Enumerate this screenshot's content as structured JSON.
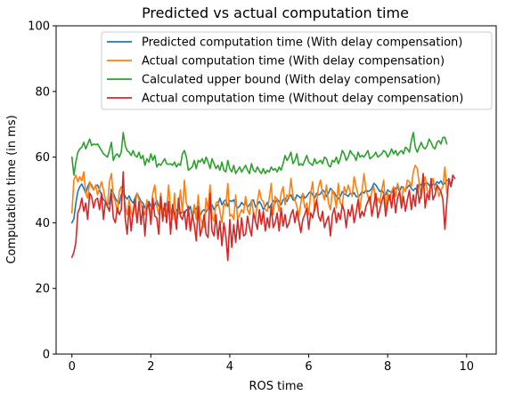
{
  "chart_data": {
    "type": "line",
    "title": "Predicted vs actual computation time",
    "xlabel": "ROS time",
    "ylabel": "Computation time (in ms)",
    "xlim": [
      -0.4,
      10.75
    ],
    "ylim": [
      0,
      100
    ],
    "x_ticks": [
      0,
      2,
      4,
      6,
      8,
      10
    ],
    "y_ticks": [
      0,
      20,
      40,
      60,
      80,
      100
    ],
    "x_tick_labels": [
      "0",
      "2",
      "4",
      "6",
      "8",
      "10"
    ],
    "y_tick_labels": [
      "0",
      "20",
      "40",
      "60",
      "80",
      "100"
    ],
    "grid": false,
    "legend_position": "top-right",
    "x_start": 0,
    "x_step": 0.05,
    "series": [
      {
        "name": "Predicted computation time (With delay compensation)",
        "color": "#1f77b4",
        "values": [
          40.0,
          41.2,
          46.0,
          49.5,
          51.0,
          51.8,
          50.5,
          49.0,
          51.0,
          52.3,
          51.5,
          50.0,
          51.2,
          51.5,
          50.0,
          48.5,
          47.0,
          46.5,
          45.5,
          46.0,
          50.2,
          49.0,
          47.5,
          46.5,
          45.8,
          48.5,
          49.5,
          48.0,
          47.2,
          48.2,
          46.8,
          46.0,
          47.5,
          49.0,
          47.8,
          46.5,
          46.0,
          44.5,
          45.8,
          46.5,
          45.0,
          44.2,
          45.5,
          46.8,
          45.0,
          46.2,
          44.0,
          44.5,
          46.0,
          43.5,
          43.0,
          44.5,
          42.5,
          44.0,
          43.0,
          42.8,
          43.5,
          42.5,
          44.0,
          43.8,
          45.0,
          42.0,
          43.5,
          44.5,
          43.0,
          42.2,
          43.5,
          44.0,
          43.2,
          44.5,
          44.0,
          45.5,
          44.0,
          45.0,
          45.5,
          47.5,
          45.5,
          46.5,
          47.0,
          45.0,
          46.8,
          46.5,
          47.0,
          45.2,
          44.5,
          45.0,
          46.2,
          45.5,
          46.0,
          44.8,
          45.5,
          46.5,
          47.0,
          44.8,
          45.5,
          46.5,
          45.5,
          44.0,
          45.0,
          46.2,
          44.5,
          45.5,
          46.8,
          46.0,
          47.2,
          46.5,
          45.5,
          47.0,
          47.5,
          46.5,
          47.8,
          48.5,
          47.0,
          46.8,
          48.5,
          48.0,
          47.5,
          48.8,
          47.5,
          48.0,
          49.0,
          49.5,
          48.5,
          47.5,
          49.0,
          48.5,
          48.8,
          50.0,
          49.5,
          48.0,
          49.0,
          50.5,
          49.8,
          49.2,
          48.0,
          47.2,
          48.0,
          49.5,
          48.8,
          48.5,
          48.0,
          49.0,
          48.5,
          49.2,
          48.0,
          47.8,
          48.5,
          49.5,
          49.0,
          50.0,
          49.5,
          49.8,
          50.5,
          52.0,
          51.5,
          50.5,
          49.5,
          50.0,
          49.0,
          48.5,
          50.0,
          49.5,
          49.2,
          50.0,
          50.5,
          51.0,
          49.5,
          51.0,
          50.5,
          50.0,
          50.8,
          51.5,
          50.5,
          49.8,
          50.5,
          50.0,
          52.0,
          51.5,
          50.8,
          52.0,
          52.2,
          51.5,
          51.0,
          51.8,
          51.5,
          52.5,
          52.0,
          52.8,
          51.5,
          52.0,
          53.0,
          53.0,
          51.0,
          53.2
        ]
      },
      {
        "name": "Actual computation time (With delay compensation)",
        "color": "#ff7f0e",
        "values": [
          43.0,
          53.0,
          54.5,
          52.5,
          54.0,
          52.8,
          55.5,
          49.0,
          47.5,
          52.5,
          51.0,
          50.0,
          51.5,
          48.5,
          50.5,
          52.5,
          50.0,
          47.0,
          45.0,
          52.5,
          55.0,
          48.0,
          46.5,
          43.0,
          49.5,
          51.0,
          49.5,
          45.0,
          42.5,
          47.0,
          43.0,
          42.0,
          45.5,
          49.0,
          47.0,
          46.0,
          43.5,
          42.5,
          47.0,
          44.0,
          43.0,
          49.0,
          51.5,
          45.0,
          42.5,
          49.0,
          43.0,
          42.0,
          43.5,
          51.5,
          43.5,
          41.0,
          49.0,
          40.0,
          44.0,
          50.0,
          43.0,
          53.0,
          46.0,
          44.0,
          38.0,
          42.0,
          45.5,
          41.0,
          48.5,
          41.5,
          40.0,
          38.5,
          47.5,
          44.0,
          51.5,
          42.0,
          40.5,
          46.0,
          46.5,
          43.5,
          40.0,
          46.0,
          45.0,
          52.0,
          42.0,
          42.5,
          41.0,
          48.5,
          41.0,
          42.5,
          44.0,
          43.0,
          48.0,
          44.0,
          42.5,
          47.0,
          43.0,
          41.0,
          46.5,
          50.0,
          47.0,
          46.5,
          44.0,
          43.5,
          47.5,
          52.0,
          42.5,
          48.0,
          47.0,
          43.5,
          49.0,
          51.0,
          45.5,
          48.5,
          47.5,
          53.5,
          48.0,
          47.0,
          45.0,
          42.0,
          46.0,
          49.0,
          44.5,
          46.0,
          42.5,
          49.0,
          52.5,
          43.5,
          46.5,
          51.0,
          53.0,
          49.0,
          47.0,
          51.5,
          46.0,
          44.0,
          50.0,
          48.5,
          44.5,
          52.0,
          46.0,
          45.0,
          51.0,
          49.0,
          51.5,
          49.5,
          48.0,
          54.0,
          51.0,
          48.5,
          44.0,
          49.5,
          55.0,
          50.0,
          48.0,
          46.0,
          49.5,
          51.0,
          45.0,
          47.5,
          46.0,
          50.0,
          53.0,
          44.0,
          49.0,
          47.0,
          49.5,
          51.0,
          48.0,
          52.0,
          50.0,
          46.5,
          51.0,
          49.5,
          53.0,
          52.5,
          51.0,
          55.5,
          57.5,
          56.5,
          52.0,
          47.5,
          52.0,
          54.0,
          50.0,
          49.0,
          52.0,
          53.5,
          50.0,
          51.0,
          48.0,
          50.0,
          51.0,
          57.0,
          49.0
        ]
      },
      {
        "name": "Calculated upper bound (With delay compensation)",
        "color": "#2ca02c",
        "values": [
          60.0,
          54.5,
          58.5,
          61.5,
          62.5,
          63.0,
          64.5,
          62.5,
          64.0,
          65.5,
          63.5,
          64.0,
          63.8,
          64.0,
          63.0,
          62.0,
          61.0,
          60.5,
          60.0,
          62.0,
          64.5,
          59.0,
          60.5,
          61.0,
          60.0,
          61.5,
          67.5,
          63.5,
          62.0,
          61.5,
          60.5,
          62.0,
          60.5,
          60.0,
          61.5,
          59.5,
          60.5,
          57.5,
          59.5,
          58.5,
          61.0,
          59.0,
          60.5,
          57.0,
          58.0,
          57.5,
          58.5,
          59.5,
          58.0,
          57.8,
          58.0,
          57.5,
          58.5,
          57.0,
          58.0,
          57.5,
          61.0,
          62.0,
          60.0,
          56.0,
          56.5,
          57.0,
          59.0,
          56.5,
          59.0,
          58.5,
          59.5,
          58.0,
          60.0,
          58.5,
          56.5,
          59.5,
          58.0,
          56.5,
          57.5,
          56.0,
          58.5,
          56.0,
          55.5,
          59.0,
          56.5,
          55.5,
          57.5,
          55.0,
          56.0,
          57.0,
          55.5,
          56.5,
          57.5,
          56.0,
          55.0,
          58.0,
          56.0,
          55.5,
          57.0,
          55.8,
          55.0,
          56.5,
          55.0,
          56.0,
          55.5,
          57.0,
          56.0,
          56.5,
          55.5,
          57.0,
          56.0,
          58.0,
          60.5,
          59.0,
          60.0,
          61.5,
          58.0,
          59.0,
          61.0,
          57.5,
          58.0,
          57.5,
          59.0,
          60.5,
          58.5,
          58.0,
          57.5,
          59.5,
          58.0,
          58.5,
          59.0,
          58.0,
          60.0,
          59.5,
          57.5,
          57.0,
          59.0,
          58.5,
          60.0,
          58.0,
          59.5,
          62.0,
          61.0,
          59.0,
          60.0,
          62.0,
          61.0,
          60.5,
          59.0,
          61.5,
          60.0,
          60.5,
          60.0,
          61.0,
          62.0,
          59.5,
          60.0,
          60.5,
          61.5,
          60.0,
          60.5,
          61.0,
          62.0,
          61.5,
          60.0,
          61.0,
          62.5,
          61.0,
          62.0,
          60.5,
          61.5,
          62.0,
          61.0,
          63.0,
          62.5,
          61.5,
          65.0,
          67.5,
          63.0,
          61.5,
          63.0,
          64.5,
          63.0,
          62.5,
          63.5,
          65.5,
          64.5,
          63.0,
          62.5,
          64.5,
          65.0,
          64.0,
          66.0,
          66.0,
          64.0
        ]
      },
      {
        "name": "Actual computation time (Without delay compensation)",
        "color": "#d62728",
        "values": [
          29.5,
          31.0,
          34.0,
          43.0,
          44.5,
          47.5,
          43.5,
          46.0,
          41.0,
          49.0,
          48.0,
          44.5,
          47.0,
          47.5,
          44.0,
          49.0,
          41.0,
          46.5,
          45.0,
          43.5,
          49.0,
          41.5,
          40.0,
          44.5,
          42.5,
          44.0,
          55.5,
          41.5,
          36.5,
          45.0,
          37.5,
          43.5,
          47.0,
          40.0,
          46.5,
          39.5,
          45.0,
          36.0,
          44.5,
          46.0,
          39.5,
          47.5,
          42.0,
          41.5,
          36.5,
          48.0,
          40.5,
          46.0,
          40.0,
          46.5,
          36.5,
          45.5,
          42.5,
          38.0,
          47.5,
          42.0,
          41.0,
          43.5,
          38.0,
          45.0,
          37.5,
          42.5,
          39.5,
          34.5,
          45.0,
          36.0,
          38.5,
          42.5,
          36.5,
          35.5,
          49.0,
          37.5,
          36.0,
          42.5,
          35.0,
          40.5,
          33.0,
          40.0,
          36.0,
          28.5,
          41.0,
          32.5,
          39.5,
          34.0,
          41.0,
          35.0,
          41.5,
          36.0,
          36.5,
          42.0,
          38.5,
          36.0,
          43.0,
          40.5,
          38.0,
          44.0,
          39.5,
          43.5,
          37.5,
          41.5,
          38.5,
          45.0,
          38.5,
          40.0,
          43.0,
          37.5,
          44.5,
          39.0,
          42.5,
          38.5,
          40.0,
          42.5,
          44.0,
          40.0,
          43.5,
          40.5,
          37.0,
          41.0,
          42.5,
          44.5,
          38.0,
          43.0,
          41.5,
          44.5,
          47.0,
          42.0,
          40.5,
          43.5,
          38.5,
          40.5,
          42.0,
          36.0,
          42.5,
          44.5,
          40.0,
          43.0,
          41.0,
          45.5,
          43.5,
          38.5,
          44.0,
          42.0,
          45.5,
          40.0,
          43.0,
          47.0,
          41.5,
          43.5,
          42.0,
          45.0,
          46.5,
          48.0,
          42.0,
          45.5,
          49.0,
          41.5,
          44.0,
          46.5,
          48.5,
          42.0,
          46.0,
          48.5,
          44.5,
          50.0,
          43.0,
          47.5,
          49.5,
          44.5,
          48.0,
          43.5,
          47.0,
          50.0,
          44.0,
          48.5,
          45.0,
          51.5,
          46.0,
          49.0,
          55.0,
          44.5,
          49.0,
          47.0,
          53.5,
          47.0,
          48.5,
          51.5,
          50.5,
          49.5,
          47.0,
          38.0,
          46.5,
          53.5,
          51.0,
          54.5,
          53.5
        ]
      }
    ]
  }
}
